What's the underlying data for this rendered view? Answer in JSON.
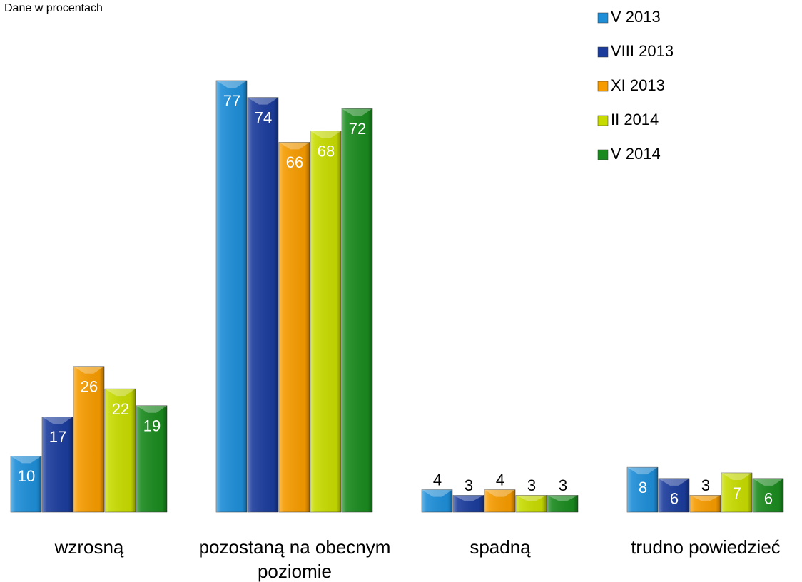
{
  "chart_data": {
    "type": "bar",
    "subtitle": "Dane w procentach",
    "categories": [
      "wzrosną",
      "pozostaną na obecnym poziomie",
      "spadną",
      "trudno powiedzieć"
    ],
    "series": [
      {
        "name": "V 2013",
        "color": "#1e8ed8",
        "values": [
          10,
          77,
          4,
          8
        ]
      },
      {
        "name": "VIII 2013",
        "color": "#1b3c9c",
        "values": [
          17,
          74,
          3,
          6
        ]
      },
      {
        "name": "XI 2013",
        "color": "#f69b00",
        "values": [
          26,
          66,
          4,
          3
        ]
      },
      {
        "name": "II 2014",
        "color": "#c7db00",
        "values": [
          22,
          68,
          3,
          7
        ]
      },
      {
        "name": "V 2014",
        "color": "#1a8a1e",
        "values": [
          19,
          72,
          3,
          6
        ]
      }
    ],
    "legend": "top-right"
  }
}
